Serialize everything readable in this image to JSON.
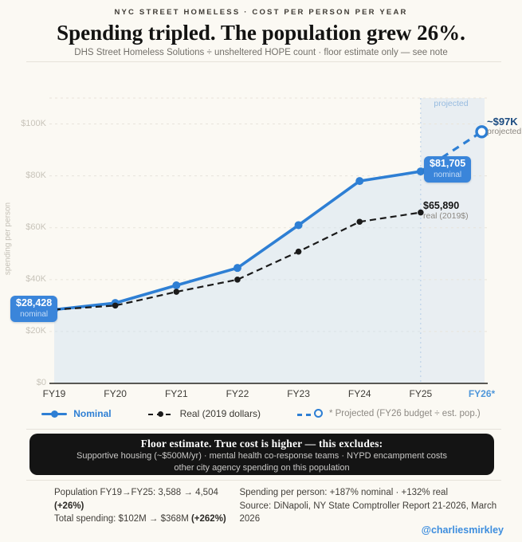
{
  "header": {
    "eyebrow": "NYC STREET HOMELESS · COST PER PERSON PER YEAR",
    "title": "Spending tripled. The population grew 26%.",
    "subtitle": "DHS Street Homeless Solutions ÷ unsheltered HOPE count · floor estimate only — see note"
  },
  "chart_data": {
    "type": "line",
    "title": "NYC street homeless cost per person per year",
    "xlabel": "",
    "ylabel": "spending per person",
    "ylim": [
      0,
      110000
    ],
    "grid": true,
    "legend_position": "bottom",
    "categories": [
      "FY19",
      "FY20",
      "FY21",
      "FY22",
      "FY23",
      "FY24",
      "FY25",
      "FY26*"
    ],
    "y_ticks": [
      {
        "label": "$0",
        "value": 0
      },
      {
        "label": "$20K",
        "value": 20000
      },
      {
        "label": "$40K",
        "value": 40000
      },
      {
        "label": "$60K",
        "value": 60000
      },
      {
        "label": "$80K",
        "value": 80000
      },
      {
        "label": "$100K",
        "value": 100000
      }
    ],
    "series": [
      {
        "name": "Nominal",
        "color": "#2e7fd4",
        "style": "solid",
        "values": [
          28428,
          31000,
          37800,
          44500,
          61000,
          78000,
          81705,
          null
        ]
      },
      {
        "name": "Real (2019 dollars)",
        "color": "#1a1a1a",
        "style": "dashed",
        "values": [
          28428,
          30000,
          35300,
          40000,
          50800,
          62300,
          65890,
          null
        ]
      },
      {
        "name": "* Projected (FY26 budget ÷ est. pop.)",
        "color": "#2e7fd4",
        "style": "dashed-open",
        "values": [
          null,
          null,
          null,
          null,
          null,
          null,
          81705,
          97000
        ]
      }
    ],
    "projected_band": {
      "starts_at": "FY25",
      "label": "projected"
    },
    "annotations": {
      "band_label": "projected",
      "start_badge_value": "$28,428",
      "start_badge_sub": "nominal",
      "end_badge_value": "$81,705",
      "end_badge_sub": "nominal",
      "real_value": "$65,890",
      "real_sub": "real (2019$)",
      "proj_value": "~$97K",
      "proj_sub": "projected"
    },
    "colors": {
      "accent_blue": "#2e7fd4",
      "badge_blue": "#3a85da",
      "navy_label": "#1b4b80",
      "black_line": "#1a1a1a",
      "area_fill": "#cfe0f2",
      "band_fill": "#e3eaf2",
      "background": "#fbf9f3"
    }
  },
  "note_box": {
    "title": "Floor estimate. True cost is higher — this excludes:",
    "line1": "Supportive housing (~$500M/yr) · mental health co-response teams · NYPD encampment costs",
    "line2": "other city agency spending on this population"
  },
  "footer": {
    "left": [
      {
        "text": "Population FY19→FY25: 3,588 → 4,504 ",
        "bold": "(+26%)"
      },
      {
        "text": "Total spending: $102M → $368M ",
        "bold": "(+262%)"
      }
    ],
    "right": [
      {
        "text": "Spending per person: +187% nominal · +132% real",
        "bold": ""
      },
      {
        "text": "Source: DiNapoli, NY State Comptroller Report 21-2026, March 2026",
        "bold": ""
      }
    ]
  },
  "credit": "@charliesmirkley"
}
